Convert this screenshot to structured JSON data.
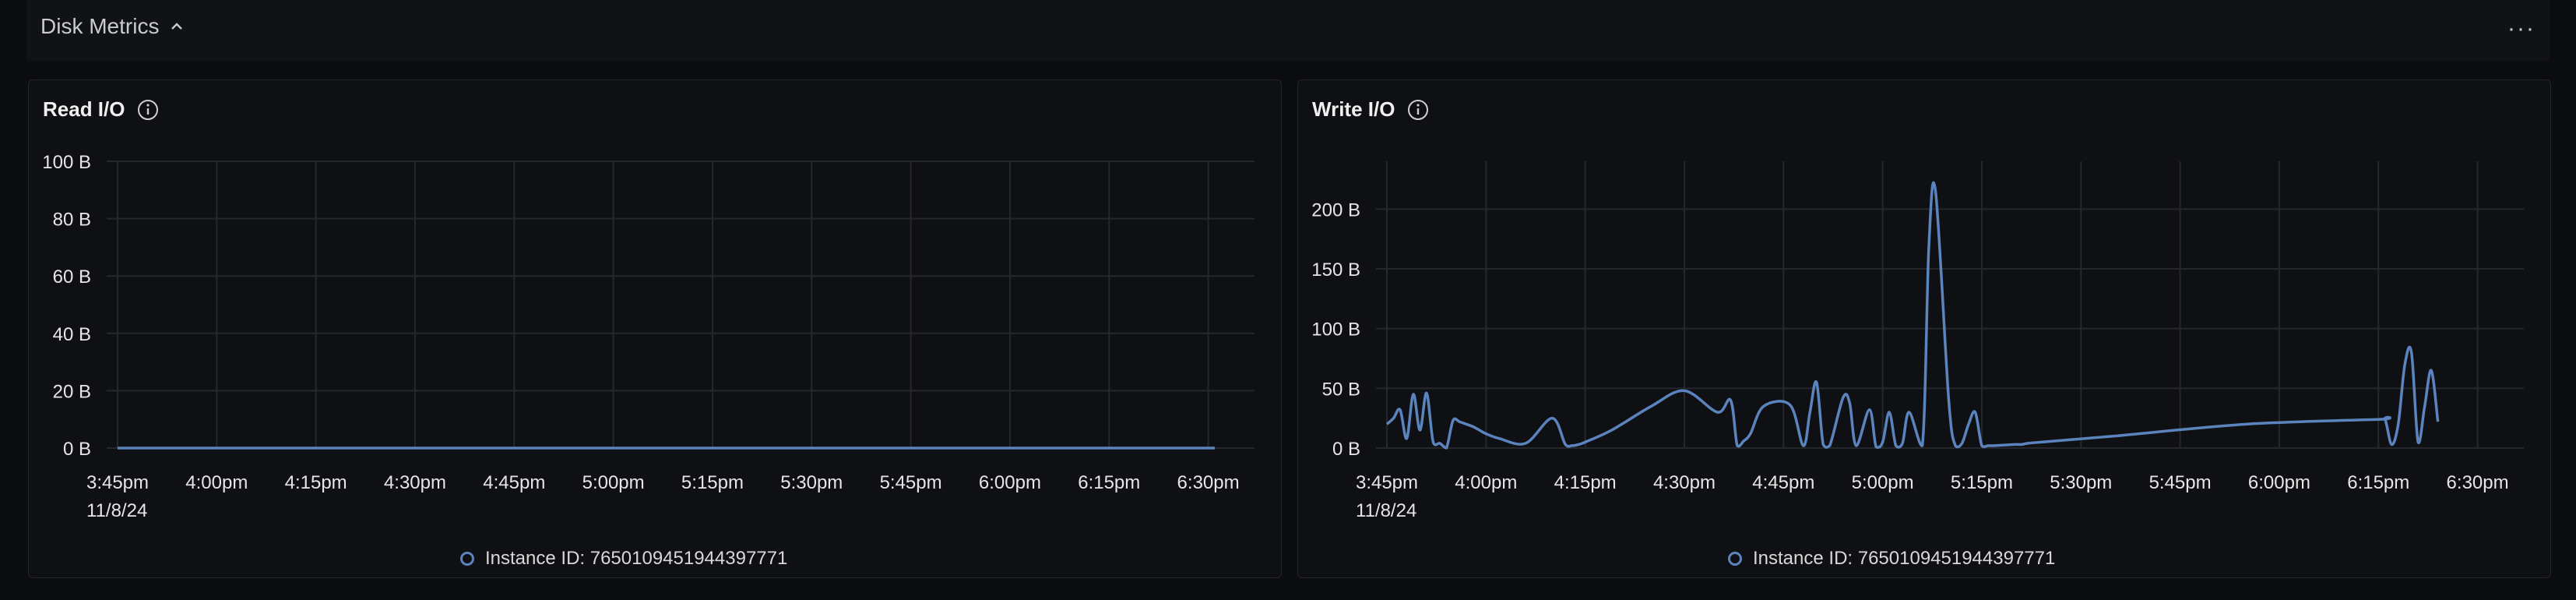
{
  "section": {
    "title": "Disk Metrics",
    "more_label": "···"
  },
  "colors": {
    "series": "#5b83bd",
    "grid": "#25272d",
    "background": "#0f1013"
  },
  "chart_data": [
    {
      "type": "line",
      "title": "Read I/O",
      "ylim": [
        0,
        100
      ],
      "yticks": [
        0,
        20,
        40,
        60,
        80,
        100
      ],
      "ytick_labels": [
        "0 B",
        "20 B",
        "40 B",
        "60 B",
        "80 B",
        "100 B"
      ],
      "xlim": [
        0,
        172
      ],
      "xticks": [
        0,
        15,
        30,
        45,
        60,
        75,
        90,
        105,
        120,
        135,
        150,
        165
      ],
      "xtick_labels": [
        "3:45pm",
        "4:00pm",
        "4:15pm",
        "4:30pm",
        "4:45pm",
        "5:00pm",
        "5:15pm",
        "5:30pm",
        "5:45pm",
        "6:00pm",
        "6:15pm",
        "6:30pm"
      ],
      "x_date_label": "11/8/24",
      "grid": true,
      "legend_position": "bottom-center",
      "series": [
        {
          "name": "Instance ID: 7650109451944397771",
          "x": [
            0,
            166
          ],
          "y": [
            0,
            0
          ]
        }
      ]
    },
    {
      "type": "line",
      "title": "Write I/O",
      "ylim": [
        0,
        240
      ],
      "yticks": [
        0,
        50,
        100,
        150,
        200
      ],
      "ytick_labels": [
        "0 B",
        "50 B",
        "100 B",
        "150 B",
        "200 B"
      ],
      "xlim": [
        0,
        172
      ],
      "xticks": [
        0,
        15,
        30,
        45,
        60,
        75,
        90,
        105,
        120,
        135,
        150,
        165
      ],
      "xtick_labels": [
        "3:45pm",
        "4:00pm",
        "4:15pm",
        "4:30pm",
        "4:45pm",
        "5:00pm",
        "5:15pm",
        "5:30pm",
        "5:45pm",
        "6:00pm",
        "6:15pm",
        "6:30pm"
      ],
      "x_date_label": "11/8/24",
      "grid": true,
      "legend_position": "bottom-center",
      "series": [
        {
          "name": "Instance ID: 7650109451944397771",
          "x": [
            0,
            1,
            2,
            3,
            4,
            5,
            6,
            7,
            8,
            9,
            10,
            11,
            12,
            13,
            14,
            15,
            17,
            21,
            25,
            27,
            28,
            29,
            30,
            34,
            40,
            45,
            50,
            52,
            53,
            54,
            55,
            57,
            61,
            63,
            64,
            65,
            66,
            67,
            69,
            70,
            71,
            73,
            74,
            75,
            76,
            77,
            78,
            79,
            81,
            82,
            83,
            85,
            86,
            87,
            88,
            89,
            90,
            91,
            92,
            95,
            96,
            97,
            99,
            110,
            130,
            150,
            151,
            152,
            153,
            154,
            155,
            156,
            157,
            158,
            159
          ],
          "y": [
            20,
            25,
            32,
            8,
            45,
            15,
            46,
            5,
            4,
            0,
            23,
            22,
            20,
            18,
            15,
            12,
            8,
            4,
            25,
            3,
            2,
            3,
            5,
            15,
            35,
            48,
            30,
            40,
            2,
            6,
            12,
            35,
            36,
            2,
            30,
            55,
            3,
            2,
            42,
            38,
            2,
            32,
            1,
            5,
            30,
            2,
            4,
            30,
            2,
            170,
            215,
            40,
            2,
            4,
            20,
            30,
            2,
            2,
            2,
            3,
            3,
            4,
            5,
            10,
            20,
            24,
            24,
            3,
            20,
            70,
            80,
            5,
            35,
            65,
            22
          ]
        }
      ]
    }
  ]
}
